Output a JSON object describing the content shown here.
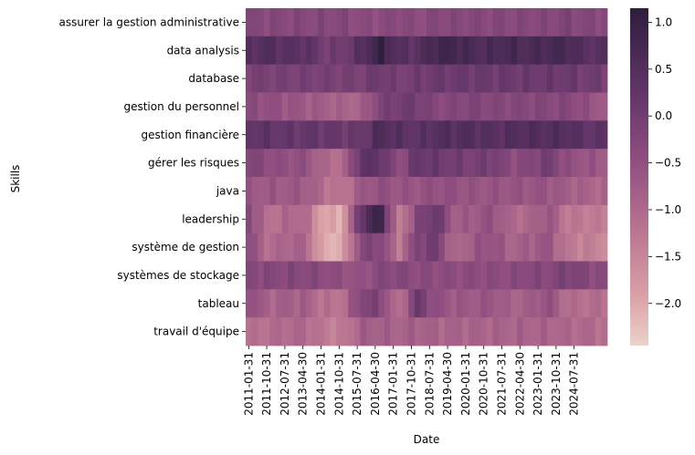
{
  "chart_data": {
    "type": "heatmap",
    "title": "",
    "xlabel": "Date",
    "ylabel": "Skills",
    "x_tick_labels": [
      "2011-01-31",
      "2011-10-31",
      "2012-07-31",
      "2013-04-30",
      "2014-01-31",
      "2014-10-31",
      "2015-07-31",
      "2016-04-30",
      "2017-01-31",
      "2017-10-31",
      "2018-07-31",
      "2019-04-30",
      "2020-01-31",
      "2020-10-31",
      "2021-07-31",
      "2022-04-30",
      "2023-01-31",
      "2023-10-31",
      "2024-07-31"
    ],
    "y_categories": [
      "assurer la gestion administrative",
      "data analysis",
      "database",
      "gestion du personnel",
      "gestion financière",
      "gérer les risques",
      "java",
      "leadership",
      "système de gestion",
      "systèmes de stockage",
      "tableau",
      "travail d'équipe"
    ],
    "colorbar": {
      "min": -2.45,
      "max": 1.15,
      "ticks": [
        1.0,
        0.5,
        0.0,
        -0.5,
        -1.0,
        -1.5,
        -2.0
      ],
      "tick_labels": [
        "1.0",
        "0.5",
        "0.0",
        "−0.5",
        "−1.0",
        "−1.5",
        "−2.0"
      ],
      "color_low": "#edd1cb",
      "color_high": "#2d1e3e"
    },
    "grid": false,
    "legend": "colorbar-right",
    "row_profiles": [
      [
        -0.3,
        -0.3,
        -0.3,
        -0.3,
        -0.3,
        -0.3,
        -0.4,
        -0.4,
        -0.3,
        -0.4,
        -0.3,
        -0.3,
        -0.3,
        -0.3,
        -0.3,
        -0.3,
        -0.3,
        -0.2,
        -0.3,
        -0.3
      ],
      [
        0.4,
        0.5,
        0.4,
        0.4,
        0.0,
        0.0,
        0.4,
        1.0,
        0.4,
        0.4,
        0.8,
        0.8,
        0.6,
        0.6,
        0.7,
        0.6,
        0.7,
        0.7,
        0.4,
        0.4
      ],
      [
        -0.1,
        -0.1,
        -0.1,
        -0.1,
        -0.1,
        -0.1,
        -0.1,
        0.1,
        -0.1,
        0.0,
        0.1,
        0.1,
        0.1,
        0.1,
        0.1,
        0.1,
        0.1,
        0.1,
        0.0,
        0.0
      ],
      [
        -0.4,
        -0.5,
        -0.6,
        -0.7,
        -0.8,
        -0.9,
        -0.9,
        -0.2,
        0.0,
        0.0,
        -0.3,
        -0.3,
        -0.2,
        -0.3,
        -0.3,
        -0.3,
        -0.3,
        -0.3,
        -0.5,
        -0.7
      ],
      [
        0.3,
        0.3,
        0.2,
        0.2,
        0.2,
        0.1,
        0.1,
        0.6,
        0.4,
        0.3,
        0.5,
        0.5,
        0.5,
        0.4,
        0.5,
        0.5,
        0.5,
        0.5,
        0.3,
        0.3
      ],
      [
        -0.2,
        -0.4,
        -0.5,
        -0.5,
        -1.0,
        -1.1,
        0.3,
        0.3,
        -0.5,
        0.2,
        0.1,
        0.0,
        -0.1,
        0.0,
        -0.4,
        -0.3,
        0.0,
        -0.5,
        -0.6,
        -0.7
      ],
      [
        -0.7,
        -0.7,
        -0.7,
        -0.7,
        -1.1,
        -1.3,
        -0.7,
        -0.5,
        -0.6,
        -0.6,
        -0.5,
        -0.5,
        -0.6,
        -0.6,
        -0.6,
        -0.6,
        -0.6,
        -0.8,
        -0.9,
        -1.0
      ],
      [
        -0.3,
        -1.2,
        -1.0,
        -1.0,
        -2.0,
        -2.0,
        0.3,
        1.0,
        -1.5,
        -0.3,
        0.2,
        -0.8,
        -0.7,
        -0.5,
        -1.0,
        -1.0,
        -0.6,
        -1.3,
        -1.3,
        -1.4
      ],
      [
        -0.4,
        -1.1,
        -0.9,
        -0.9,
        -2.1,
        -2.0,
        -0.3,
        -0.2,
        -1.3,
        -0.2,
        0.0,
        -1.1,
        -0.7,
        -0.5,
        -0.9,
        -0.8,
        -0.6,
        -1.3,
        -1.4,
        -1.5
      ],
      [
        -0.3,
        -0.3,
        -0.3,
        -0.3,
        -0.4,
        -0.5,
        -0.6,
        -0.3,
        -0.3,
        -0.4,
        -0.4,
        -0.4,
        -0.4,
        -0.4,
        -0.4,
        -0.3,
        -0.3,
        -0.1,
        -0.3,
        -0.4
      ],
      [
        -0.4,
        -0.9,
        -0.8,
        -0.8,
        -1.2,
        -1.2,
        -0.2,
        -0.2,
        -1.3,
        0.1,
        -0.5,
        -0.7,
        -0.7,
        -0.6,
        -0.9,
        -0.8,
        -0.5,
        -1.1,
        -1.1,
        -1.1
      ],
      [
        -1.2,
        -1.1,
        -1.0,
        -1.0,
        -1.3,
        -1.4,
        -0.8,
        -0.8,
        -0.9,
        -0.8,
        -0.9,
        -0.9,
        -0.9,
        -0.9,
        -0.9,
        -0.9,
        -0.9,
        -1.0,
        -1.0,
        -1.1
      ]
    ]
  }
}
